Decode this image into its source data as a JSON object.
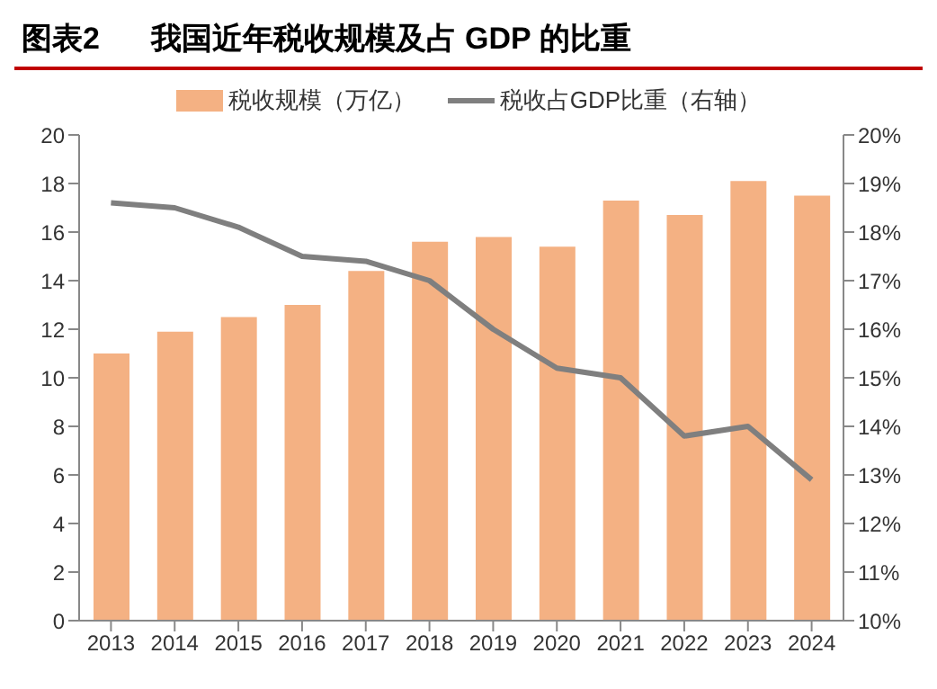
{
  "chart_data": {
    "type": "bar",
    "title": "图表2      我国近年税收规模及占 GDP 的比重",
    "categories": [
      "2013",
      "2014",
      "2015",
      "2016",
      "2017",
      "2018",
      "2019",
      "2020",
      "2021",
      "2022",
      "2023",
      "2024"
    ],
    "series": [
      {
        "name": "税收规模（万亿）",
        "color": "#f4b183",
        "values": [
          11.0,
          11.9,
          12.5,
          13.0,
          14.4,
          15.6,
          15.8,
          15.4,
          17.3,
          16.7,
          18.1,
          17.5
        ]
      },
      {
        "name": "税收占GDP比重（右轴）",
        "type": "line",
        "axis": "y2",
        "color": "#7f7f7f",
        "values": [
          18.6,
          18.5,
          18.1,
          17.5,
          17.4,
          17.0,
          16.0,
          15.2,
          15.0,
          13.8,
          14.0,
          12.9
        ]
      }
    ],
    "ylim": [
      0,
      20
    ],
    "yticks": [
      0,
      2,
      4,
      6,
      8,
      10,
      12,
      14,
      16,
      18,
      20
    ],
    "y2lim": [
      10,
      20
    ],
    "y2ticks": [
      {
        "value": 10,
        "label": "10%"
      },
      {
        "value": 11,
        "label": "11%"
      },
      {
        "value": 12,
        "label": "12%"
      },
      {
        "value": 13,
        "label": "13%"
      },
      {
        "value": 14,
        "label": "14%"
      },
      {
        "value": 15,
        "label": "15%"
      },
      {
        "value": 16,
        "label": "16%"
      },
      {
        "value": 17,
        "label": "17%"
      },
      {
        "value": 18,
        "label": "18%"
      },
      {
        "value": 19,
        "label": "19%"
      },
      {
        "value": 20,
        "label": "20%"
      }
    ],
    "grid": false,
    "legend": "top",
    "marker": "none",
    "line_style": "solid"
  }
}
